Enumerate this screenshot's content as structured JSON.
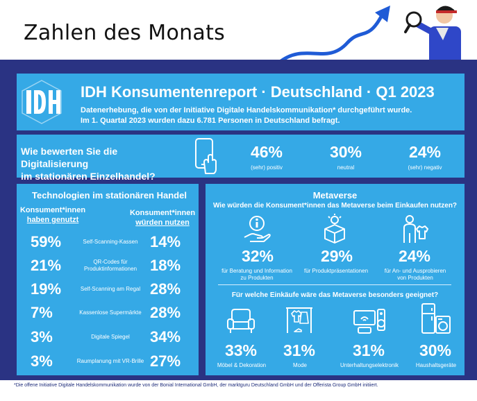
{
  "page_title": "Zahlen des Monats",
  "header": {
    "logo_text": "IDH",
    "title": "IDH Konsumentenreport · Deutschland · Q1 2023",
    "subtitle_line1": "Datenerhebung, die von der Initiative Digitale Handelskommunikation* durchgeführt wurde.",
    "subtitle_line2": "Im 1. Quartal 2023 wurden dazu 6.781 Personen in Deutschland befragt."
  },
  "question": {
    "text_line1": "Wie bewerten Sie die Digitalisierung",
    "text_line2": "im stationären Einzelhandel?",
    "stats": [
      {
        "value": "46%",
        "label": "(sehr) positiv"
      },
      {
        "value": "30%",
        "label": "neutral"
      },
      {
        "value": "24%",
        "label": "(sehr) negativ"
      }
    ]
  },
  "technologies": {
    "title": "Technologien im stationären Handel",
    "col_left_line1": "Konsument*innen",
    "col_left_line2": "haben genutzt",
    "col_right_line1": "Konsument*innen",
    "col_right_line2": "würden nutzen",
    "rows": [
      {
        "used": "59%",
        "label": "Self-Scanning-Kassen",
        "would": "14%"
      },
      {
        "used": "21%",
        "label": "QR-Codes für Produktinformationen",
        "would": "18%"
      },
      {
        "used": "19%",
        "label": "Self-Scanning am Regal",
        "would": "28%"
      },
      {
        "used": "7%",
        "label": "Kassenlose Supermärkte",
        "would": "28%"
      },
      {
        "used": "3%",
        "label": "Digitale Spiegel",
        "would": "34%"
      },
      {
        "used": "3%",
        "label": "Raumplanung mit VR-Brille",
        "would": "27%"
      }
    ]
  },
  "metaverse": {
    "title": "Metaverse",
    "question1": "Wie würden die Konsument*innen das Metaverse beim Einkaufen nutzen?",
    "uses": [
      {
        "value": "32%",
        "label_line1": "für Beratung und Information",
        "label_line2": "zu Produkten",
        "icon": "info-hand-icon"
      },
      {
        "value": "29%",
        "label_line1": "für Produktpräsentationen",
        "label_line2": "",
        "icon": "product-presentation-icon"
      },
      {
        "value": "24%",
        "label_line1": "für An- und Ausprobieren",
        "label_line2": "von Produkten",
        "icon": "try-on-icon"
      }
    ],
    "question2": "Für welche Einkäufe wäre das Metaverse besonders geeignet?",
    "categories": [
      {
        "value": "33%",
        "label": "Möbel & Dekoration",
        "icon": "armchair-icon"
      },
      {
        "value": "31%",
        "label": "Mode",
        "icon": "clothes-rack-icon"
      },
      {
        "value": "31%",
        "label": "Unterhaltungselektronik",
        "icon": "electronics-icon"
      },
      {
        "value": "30%",
        "label": "Haushaltsgeräte",
        "icon": "appliances-icon"
      }
    ]
  },
  "footer": "*Die offene Initiative Digitale Handelskommunikation wurde von der Bonial International GmbH, der marktguru Deutschland GmbH und der Offerista Group GmbH initiiert.",
  "colors": {
    "navy": "#2a3383",
    "sky": "#35a9e6",
    "accent_blue": "#1f5bd6"
  }
}
